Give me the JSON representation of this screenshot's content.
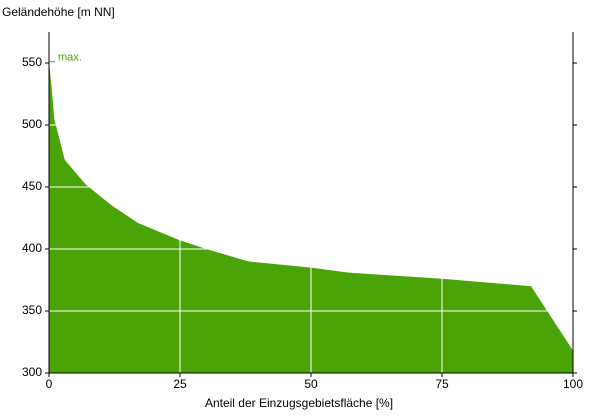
{
  "chart_data": {
    "type": "area",
    "ylabel": "Geländehöhe [m NN]",
    "xlabel": "Anteil der Einzugsgebietsfläche [%]",
    "annotation": "max.",
    "x": [
      0,
      0.5,
      1,
      3,
      7,
      12,
      17,
      25,
      30,
      38,
      50,
      57,
      75,
      92,
      100
    ],
    "values": [
      551,
      530,
      505,
      472,
      452,
      435,
      421,
      407,
      400,
      390,
      385,
      381,
      376,
      370,
      318
    ],
    "color": "#4aa307",
    "xlim": [
      0,
      100
    ],
    "xticks": [
      0,
      25,
      50,
      75,
      100
    ],
    "ylim": [
      300,
      575
    ],
    "yticks": [
      300,
      350,
      400,
      450,
      500,
      550
    ],
    "grid": true
  }
}
